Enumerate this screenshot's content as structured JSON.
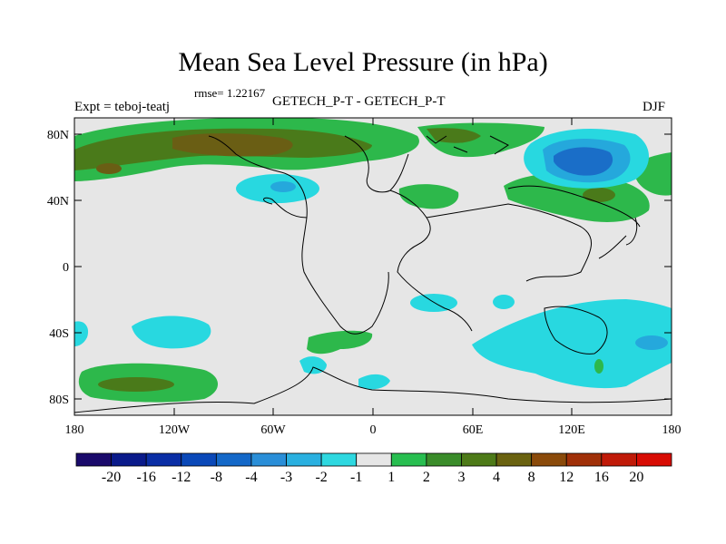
{
  "title": "Mean Sea Level Pressure (in hPa)",
  "left_label": "Expt = teboj-teatj",
  "rmse_label": "rmse= 1.22167",
  "center_label": "GETECH_P-T - GETECH_P-T",
  "season_label": "DJF",
  "lat_ticks": [
    "80N",
    "40N",
    "0",
    "40S",
    "80S"
  ],
  "lon_ticks": [
    "180",
    "120W",
    "60W",
    "0",
    "60E",
    "120E",
    "180"
  ],
  "colorbar": {
    "levels": [
      "-20",
      "-16",
      "-12",
      "-8",
      "-4",
      "-3",
      "-2",
      "-1",
      "1",
      "2",
      "3",
      "4",
      "8",
      "12",
      "16",
      "20"
    ],
    "colors": [
      "#1a0a6b",
      "#0a1a8a",
      "#0a2ea5",
      "#0a48b8",
      "#1468c8",
      "#2a8ed8",
      "#2ab0e0",
      "#2ed8e0",
      "#e6e6e6",
      "#28be50",
      "#3a8c2a",
      "#4d7a18",
      "#6a6210",
      "#8a4a0a",
      "#a03008",
      "#c01a08",
      "#d80c04"
    ]
  },
  "colors": {
    "land_neutral": "#e6e6e6",
    "green": "#2db84b",
    "dark_green": "#4a7a1a",
    "olive": "#6a5e14",
    "cyan": "#28d8e0",
    "light_blue": "#25a8dc",
    "blue": "#1a6ec8"
  }
}
